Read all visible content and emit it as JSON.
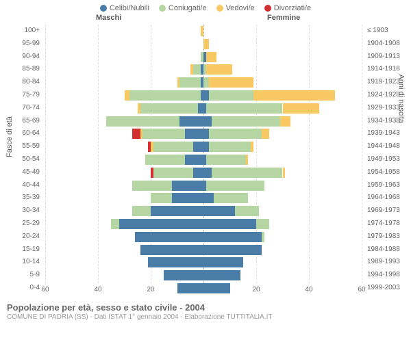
{
  "legend": [
    {
      "label": "Celibi/Nubili",
      "color": "#4a7ca8"
    },
    {
      "label": "Coniugati/e",
      "color": "#b5d6a3"
    },
    {
      "label": "Vedovi/e",
      "color": "#f8c963"
    },
    {
      "label": "Divorziati/e",
      "color": "#d22f2f"
    }
  ],
  "headers": {
    "male": "Maschi",
    "female": "Femmine"
  },
  "axis_labels": {
    "left": "Fasce di età",
    "right": "Anni di nascita"
  },
  "x_axis": {
    "min": -60,
    "max": 60,
    "ticks": [
      -60,
      -40,
      -20,
      0,
      20,
      40,
      60
    ],
    "tick_labels": [
      "60",
      "40",
      "20",
      "0",
      "20",
      "40",
      "60"
    ]
  },
  "grid_color": "#dddddd",
  "center_color": "#bbbbbb",
  "rows": [
    {
      "age": "100+",
      "birth": "≤ 1903",
      "m": [
        0,
        0,
        1,
        0
      ],
      "f": [
        0,
        0,
        0,
        0
      ]
    },
    {
      "age": "95-99",
      "birth": "1904-1908",
      "m": [
        0,
        0,
        0,
        0
      ],
      "f": [
        0,
        0,
        2,
        0
      ]
    },
    {
      "age": "90-94",
      "birth": "1909-1913",
      "m": [
        0,
        1,
        0,
        0
      ],
      "f": [
        1,
        0,
        4,
        0
      ]
    },
    {
      "age": "85-89",
      "birth": "1914-1918",
      "m": [
        1,
        3,
        1,
        0
      ],
      "f": [
        0,
        1,
        10,
        0
      ]
    },
    {
      "age": "80-84",
      "birth": "1919-1923",
      "m": [
        1,
        8,
        1,
        0
      ],
      "f": [
        0,
        2,
        17,
        0
      ]
    },
    {
      "age": "75-79",
      "birth": "1924-1928",
      "m": [
        1,
        27,
        2,
        0
      ],
      "f": [
        2,
        17,
        31,
        0
      ]
    },
    {
      "age": "70-74",
      "birth": "1929-1933",
      "m": [
        2,
        22,
        1,
        0
      ],
      "f": [
        1,
        29,
        14,
        0
      ]
    },
    {
      "age": "65-69",
      "birth": "1934-1938",
      "m": [
        9,
        28,
        0,
        0
      ],
      "f": [
        3,
        26,
        4,
        0
      ]
    },
    {
      "age": "60-64",
      "birth": "1939-1943",
      "m": [
        7,
        16,
        1,
        3
      ],
      "f": [
        2,
        20,
        3,
        0
      ]
    },
    {
      "age": "55-59",
      "birth": "1944-1948",
      "m": [
        4,
        15,
        1,
        1
      ],
      "f": [
        2,
        16,
        1,
        0
      ]
    },
    {
      "age": "50-54",
      "birth": "1949-1953",
      "m": [
        7,
        15,
        0,
        0
      ],
      "f": [
        1,
        15,
        1,
        0
      ]
    },
    {
      "age": "45-49",
      "birth": "1954-1958",
      "m": [
        4,
        15,
        0,
        1
      ],
      "f": [
        3,
        27,
        1,
        0
      ]
    },
    {
      "age": "40-44",
      "birth": "1959-1963",
      "m": [
        12,
        15,
        0,
        0
      ],
      "f": [
        1,
        22,
        0,
        0
      ]
    },
    {
      "age": "35-39",
      "birth": "1964-1968",
      "m": [
        12,
        8,
        0,
        0
      ],
      "f": [
        4,
        13,
        0,
        0
      ]
    },
    {
      "age": "30-34",
      "birth": "1969-1973",
      "m": [
        20,
        7,
        0,
        0
      ],
      "f": [
        12,
        9,
        0,
        0
      ]
    },
    {
      "age": "25-29",
      "birth": "1974-1978",
      "m": [
        32,
        3,
        0,
        0
      ],
      "f": [
        20,
        5,
        0,
        0
      ]
    },
    {
      "age": "20-24",
      "birth": "1979-1983",
      "m": [
        26,
        0,
        0,
        0
      ],
      "f": [
        22,
        1,
        0,
        0
      ]
    },
    {
      "age": "15-19",
      "birth": "1984-1988",
      "m": [
        24,
        0,
        0,
        0
      ],
      "f": [
        22,
        0,
        0,
        0
      ]
    },
    {
      "age": "10-14",
      "birth": "1989-1993",
      "m": [
        21,
        0,
        0,
        0
      ],
      "f": [
        15,
        0,
        0,
        0
      ]
    },
    {
      "age": "5-9",
      "birth": "1994-1998",
      "m": [
        15,
        0,
        0,
        0
      ],
      "f": [
        14,
        0,
        0,
        0
      ]
    },
    {
      "age": "0-4",
      "birth": "1999-2003",
      "m": [
        10,
        0,
        0,
        0
      ],
      "f": [
        10,
        0,
        0,
        0
      ]
    }
  ],
  "footer": {
    "title": "Popolazione per età, sesso e stato civile - 2004",
    "sub": "COMUNE DI PADRIA (SS) - Dati ISTAT 1° gennaio 2004 - Elaborazione TUTTITALIA.IT"
  }
}
